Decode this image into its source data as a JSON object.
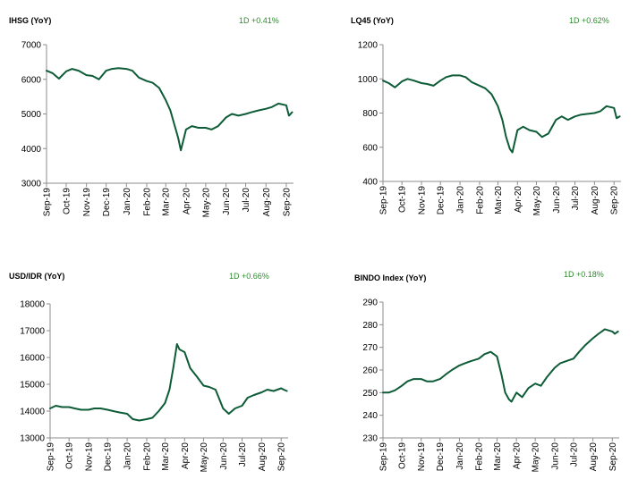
{
  "colors": {
    "line": "#0d5c37",
    "axis": "#8c8c8c",
    "change_text": "#2e8b2e"
  },
  "chart_data": [
    {
      "type": "line",
      "title": "IHSG (YoY)",
      "change": "1D +0.41%",
      "ylim": [
        3000,
        7000
      ],
      "yticks": [
        3000,
        4000,
        5000,
        6000,
        7000
      ],
      "xlim": [
        "2019-09-01",
        "2020-09-12"
      ],
      "xticks": [
        "Sep-19",
        "Oct-19",
        "Nov-19",
        "Dec-19",
        "Jan-20",
        "Feb-20",
        "Mar-20",
        "Apr-20",
        "May-20",
        "Jun-20",
        "Jul-20",
        "Aug-20",
        "Sep-20"
      ],
      "grid": false,
      "series": [
        {
          "x": [
            "2019-09-01",
            "2019-09-10",
            "2019-09-20",
            "2019-10-01",
            "2019-10-10",
            "2019-10-20",
            "2019-11-01",
            "2019-11-10",
            "2019-11-20",
            "2019-12-01",
            "2019-12-10",
            "2019-12-20",
            "2020-01-01",
            "2020-01-10",
            "2020-01-20",
            "2020-02-01",
            "2020-02-10",
            "2020-02-20",
            "2020-03-01",
            "2020-03-08",
            "2020-03-14",
            "2020-03-20",
            "2020-03-24",
            "2020-04-01",
            "2020-04-10",
            "2020-04-20",
            "2020-05-01",
            "2020-05-10",
            "2020-05-20",
            "2020-06-01",
            "2020-06-10",
            "2020-06-20",
            "2020-07-01",
            "2020-07-10",
            "2020-07-20",
            "2020-08-01",
            "2020-08-10",
            "2020-08-20",
            "2020-09-01",
            "2020-09-05",
            "2020-09-10"
          ],
          "values": [
            6250,
            6180,
            6020,
            6230,
            6300,
            6250,
            6120,
            6100,
            6000,
            6250,
            6300,
            6320,
            6300,
            6250,
            6050,
            5950,
            5900,
            5750,
            5400,
            5100,
            4700,
            4300,
            3950,
            4550,
            4650,
            4600,
            4600,
            4550,
            4650,
            4900,
            5000,
            4950,
            5000,
            5050,
            5100,
            5150,
            5200,
            5300,
            5250,
            4950,
            5050
          ]
        }
      ]
    },
    {
      "type": "line",
      "title": "LQ45 (YoY)",
      "change": "1D +0.62%",
      "ylim": [
        400,
        1200
      ],
      "yticks": [
        400,
        600,
        800,
        1000,
        1200
      ],
      "xlim": [
        "2019-09-01",
        "2020-09-12"
      ],
      "xticks": [
        "Sep-19",
        "Oct-19",
        "Nov-19",
        "Dec-19",
        "Jan-20",
        "Feb-20",
        "Mar-20",
        "Apr-20",
        "May-20",
        "Jun-20",
        "Jul-20",
        "Aug-20",
        "Sep-20"
      ],
      "grid": false,
      "series": [
        {
          "x": [
            "2019-09-01",
            "2019-09-10",
            "2019-09-20",
            "2019-10-01",
            "2019-10-10",
            "2019-10-20",
            "2019-11-01",
            "2019-11-10",
            "2019-11-20",
            "2019-12-01",
            "2019-12-10",
            "2019-12-20",
            "2020-01-01",
            "2020-01-10",
            "2020-01-20",
            "2020-02-01",
            "2020-02-10",
            "2020-02-20",
            "2020-03-01",
            "2020-03-08",
            "2020-03-14",
            "2020-03-20",
            "2020-03-24",
            "2020-04-01",
            "2020-04-10",
            "2020-04-20",
            "2020-05-01",
            "2020-05-10",
            "2020-05-20",
            "2020-06-01",
            "2020-06-10",
            "2020-06-20",
            "2020-07-01",
            "2020-07-10",
            "2020-07-20",
            "2020-08-01",
            "2020-08-10",
            "2020-08-20",
            "2020-09-01",
            "2020-09-05",
            "2020-09-10"
          ],
          "values": [
            990,
            975,
            950,
            985,
            1000,
            990,
            975,
            970,
            960,
            990,
            1010,
            1020,
            1020,
            1010,
            980,
            960,
            945,
            910,
            840,
            760,
            660,
            590,
            570,
            700,
            720,
            700,
            690,
            660,
            680,
            760,
            780,
            760,
            780,
            790,
            795,
            800,
            810,
            840,
            830,
            770,
            780
          ]
        }
      ]
    },
    {
      "type": "line",
      "title": "USD/IDR  (YoY)",
      "change": "1D +0.66%",
      "ylim": [
        13000,
        18000
      ],
      "yticks": [
        13000,
        14000,
        15000,
        16000,
        17000,
        18000
      ],
      "xlim": [
        "2019-09-01",
        "2020-09-12"
      ],
      "xticks": [
        "Sep-19",
        "Oct-19",
        "Nov-19",
        "Dec-19",
        "Jan-20",
        "Feb-20",
        "Mar-20",
        "Apr-20",
        "May-20",
        "Jun-20",
        "Jul-20",
        "Aug-20",
        "Sep-20"
      ],
      "grid": false,
      "series": [
        {
          "x": [
            "2019-09-01",
            "2019-09-10",
            "2019-09-20",
            "2019-10-01",
            "2019-10-10",
            "2019-10-20",
            "2019-11-01",
            "2019-11-10",
            "2019-11-20",
            "2019-12-01",
            "2019-12-10",
            "2019-12-20",
            "2020-01-01",
            "2020-01-10",
            "2020-01-20",
            "2020-02-01",
            "2020-02-10",
            "2020-02-20",
            "2020-03-01",
            "2020-03-08",
            "2020-03-14",
            "2020-03-20",
            "2020-03-24",
            "2020-04-01",
            "2020-04-10",
            "2020-04-20",
            "2020-05-01",
            "2020-05-10",
            "2020-05-20",
            "2020-06-01",
            "2020-06-10",
            "2020-06-20",
            "2020-07-01",
            "2020-07-10",
            "2020-07-20",
            "2020-08-01",
            "2020-08-10",
            "2020-08-20",
            "2020-09-01",
            "2020-09-05",
            "2020-09-10"
          ],
          "values": [
            14100,
            14200,
            14150,
            14150,
            14100,
            14050,
            14050,
            14100,
            14100,
            14050,
            14000,
            13950,
            13900,
            13700,
            13650,
            13700,
            13750,
            14000,
            14300,
            14800,
            15600,
            16500,
            16300,
            16200,
            15600,
            15300,
            14950,
            14900,
            14800,
            14100,
            13900,
            14100,
            14200,
            14500,
            14600,
            14700,
            14800,
            14750,
            14850,
            14800,
            14750
          ]
        }
      ]
    },
    {
      "type": "line",
      "title": "BINDO Index (YoY)",
      "change": "1D +0.18%",
      "ylim": [
        230,
        290
      ],
      "yticks": [
        230,
        240,
        250,
        260,
        270,
        280,
        290
      ],
      "xlim": [
        "2019-09-01",
        "2020-09-12"
      ],
      "xticks": [
        "Sep-19",
        "Oct-19",
        "Nov-19",
        "Dec-19",
        "Jan-20",
        "Feb-20",
        "Mar-20",
        "Apr-20",
        "May-20",
        "Jun-20",
        "Jul-20",
        "Aug-20",
        "Sep-20"
      ],
      "grid": false,
      "series": [
        {
          "x": [
            "2019-09-01",
            "2019-09-10",
            "2019-09-20",
            "2019-10-01",
            "2019-10-10",
            "2019-10-20",
            "2019-11-01",
            "2019-11-10",
            "2019-11-20",
            "2019-12-01",
            "2019-12-10",
            "2019-12-20",
            "2020-01-01",
            "2020-01-10",
            "2020-01-20",
            "2020-02-01",
            "2020-02-10",
            "2020-02-20",
            "2020-03-01",
            "2020-03-08",
            "2020-03-14",
            "2020-03-20",
            "2020-03-24",
            "2020-04-01",
            "2020-04-10",
            "2020-04-20",
            "2020-05-01",
            "2020-05-10",
            "2020-05-20",
            "2020-06-01",
            "2020-06-10",
            "2020-06-20",
            "2020-07-01",
            "2020-07-10",
            "2020-07-20",
            "2020-08-01",
            "2020-08-10",
            "2020-08-20",
            "2020-09-01",
            "2020-09-05",
            "2020-09-10"
          ],
          "values": [
            250,
            250,
            251,
            253,
            255,
            256,
            256,
            255,
            255,
            256,
            258,
            260,
            262,
            263,
            264,
            265,
            267,
            268,
            266,
            258,
            250,
            247,
            246,
            250,
            248,
            252,
            254,
            253,
            257,
            261,
            263,
            264,
            265,
            268,
            271,
            274,
            276,
            278,
            277,
            276,
            277
          ]
        }
      ]
    }
  ]
}
